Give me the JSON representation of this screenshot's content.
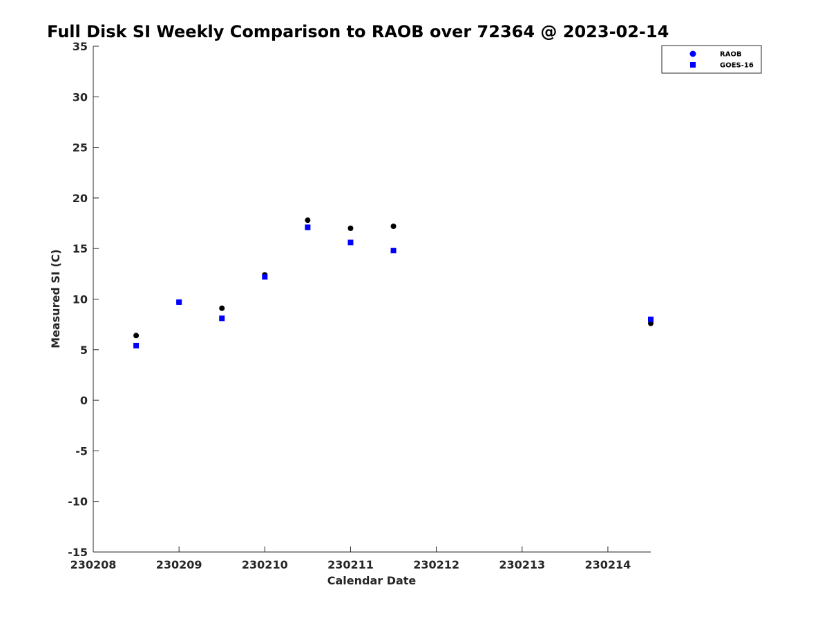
{
  "chart_data": {
    "type": "scatter",
    "title": "Full Disk SI Weekly Comparison to RAOB over 72364 @ 2023-02-14",
    "xlabel": "Calendar Date",
    "ylabel": "Measured SI (C)",
    "xlim": [
      "2023-02-08",
      "2023-02-14T12:00"
    ],
    "ylim": [
      -15,
      35
    ],
    "x_ticks": [
      {
        "value": "2023-02-08",
        "label": "230208"
      },
      {
        "value": "2023-02-09",
        "label": "230209"
      },
      {
        "value": "2023-02-10",
        "label": "230210"
      },
      {
        "value": "2023-02-11",
        "label": "230211"
      },
      {
        "value": "2023-02-12",
        "label": "230212"
      },
      {
        "value": "2023-02-13",
        "label": "230213"
      },
      {
        "value": "2023-02-14",
        "label": "230214"
      }
    ],
    "y_ticks": [
      35,
      30,
      25,
      20,
      15,
      10,
      5,
      0,
      -5,
      -10,
      -15
    ],
    "grid": false,
    "legend_position": "top-right",
    "series": [
      {
        "name": "RAOB",
        "marker": "circle",
        "color": "#000000",
        "legend_color": "#0000ff",
        "points": [
          {
            "x": "2023-02-08T12:00",
            "y": 6.4
          },
          {
            "x": "2023-02-09T00:00",
            "y": 9.7
          },
          {
            "x": "2023-02-09T12:00",
            "y": 9.1
          },
          {
            "x": "2023-02-10T00:00",
            "y": 12.4
          },
          {
            "x": "2023-02-10T12:00",
            "y": 17.8
          },
          {
            "x": "2023-02-11T00:00",
            "y": 17.0
          },
          {
            "x": "2023-02-11T12:00",
            "y": 17.2
          },
          {
            "x": "2023-02-14T12:00",
            "y": 7.6
          }
        ]
      },
      {
        "name": "GOES-16",
        "marker": "square",
        "color": "#0000ff",
        "legend_color": "#0000ff",
        "points": [
          {
            "x": "2023-02-08T12:00",
            "y": 5.4
          },
          {
            "x": "2023-02-09T00:00",
            "y": 9.7
          },
          {
            "x": "2023-02-09T12:00",
            "y": 8.1
          },
          {
            "x": "2023-02-10T00:00",
            "y": 12.2
          },
          {
            "x": "2023-02-10T12:00",
            "y": 17.1
          },
          {
            "x": "2023-02-11T00:00",
            "y": 15.6
          },
          {
            "x": "2023-02-11T12:00",
            "y": 14.8
          },
          {
            "x": "2023-02-14T12:00",
            "y": 8.0
          }
        ]
      }
    ]
  }
}
